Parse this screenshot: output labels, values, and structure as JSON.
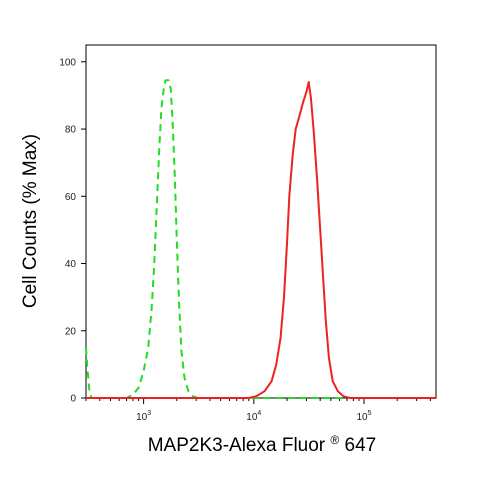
{
  "chart_data": {
    "type": "line",
    "x_scale": "log",
    "xlabel": "MAP2K3-Alexa Fluor",
    "xlabel_superscript": "®",
    "xlabel_suffix": "647",
    "ylabel": "Cell Counts (% Max)",
    "xlim": [
      300,
      450000
    ],
    "ylim": [
      0,
      105
    ],
    "x_ticks": [
      {
        "value": 1000,
        "base": "10",
        "exp": "3"
      },
      {
        "value": 10000,
        "base": "10",
        "exp": "4"
      },
      {
        "value": 100000,
        "base": "10",
        "exp": "5"
      }
    ],
    "y_ticks": [
      0,
      20,
      40,
      60,
      80,
      100
    ],
    "grid": false,
    "series": [
      {
        "color": "#22dd22",
        "style": "dashed",
        "points": [
          [
            300,
            15
          ],
          [
            310,
            8
          ],
          [
            325,
            1
          ],
          [
            340,
            0
          ],
          [
            700,
            0
          ],
          [
            800,
            1
          ],
          [
            900,
            3
          ],
          [
            1000,
            8
          ],
          [
            1100,
            15
          ],
          [
            1180,
            26
          ],
          [
            1250,
            40
          ],
          [
            1320,
            58
          ],
          [
            1390,
            75
          ],
          [
            1450,
            86
          ],
          [
            1520,
            92
          ],
          [
            1580,
            94.5
          ],
          [
            1680,
            94.5
          ],
          [
            1760,
            92
          ],
          [
            1830,
            83
          ],
          [
            1920,
            66
          ],
          [
            2000,
            47
          ],
          [
            2100,
            28
          ],
          [
            2200,
            14
          ],
          [
            2350,
            6
          ],
          [
            2550,
            2
          ],
          [
            2800,
            0.5
          ],
          [
            3100,
            0
          ],
          [
            450000,
            0
          ]
        ]
      },
      {
        "color": "#ee2222",
        "style": "solid",
        "points": [
          [
            300,
            0
          ],
          [
            9000,
            0
          ],
          [
            10500,
            0.5
          ],
          [
            12500,
            2
          ],
          [
            14500,
            5
          ],
          [
            16000,
            10
          ],
          [
            17500,
            18
          ],
          [
            18800,
            30
          ],
          [
            20000,
            46
          ],
          [
            21000,
            60
          ],
          [
            22500,
            72
          ],
          [
            24000,
            80
          ],
          [
            26000,
            84
          ],
          [
            28000,
            88
          ],
          [
            30000,
            91
          ],
          [
            31500,
            94
          ],
          [
            33000,
            89
          ],
          [
            35000,
            79
          ],
          [
            37500,
            65
          ],
          [
            40000,
            50
          ],
          [
            42500,
            36
          ],
          [
            45000,
            23
          ],
          [
            48000,
            12
          ],
          [
            52000,
            5
          ],
          [
            58000,
            2
          ],
          [
            65000,
            0.5
          ],
          [
            75000,
            0
          ],
          [
            450000,
            0
          ]
        ]
      }
    ]
  }
}
